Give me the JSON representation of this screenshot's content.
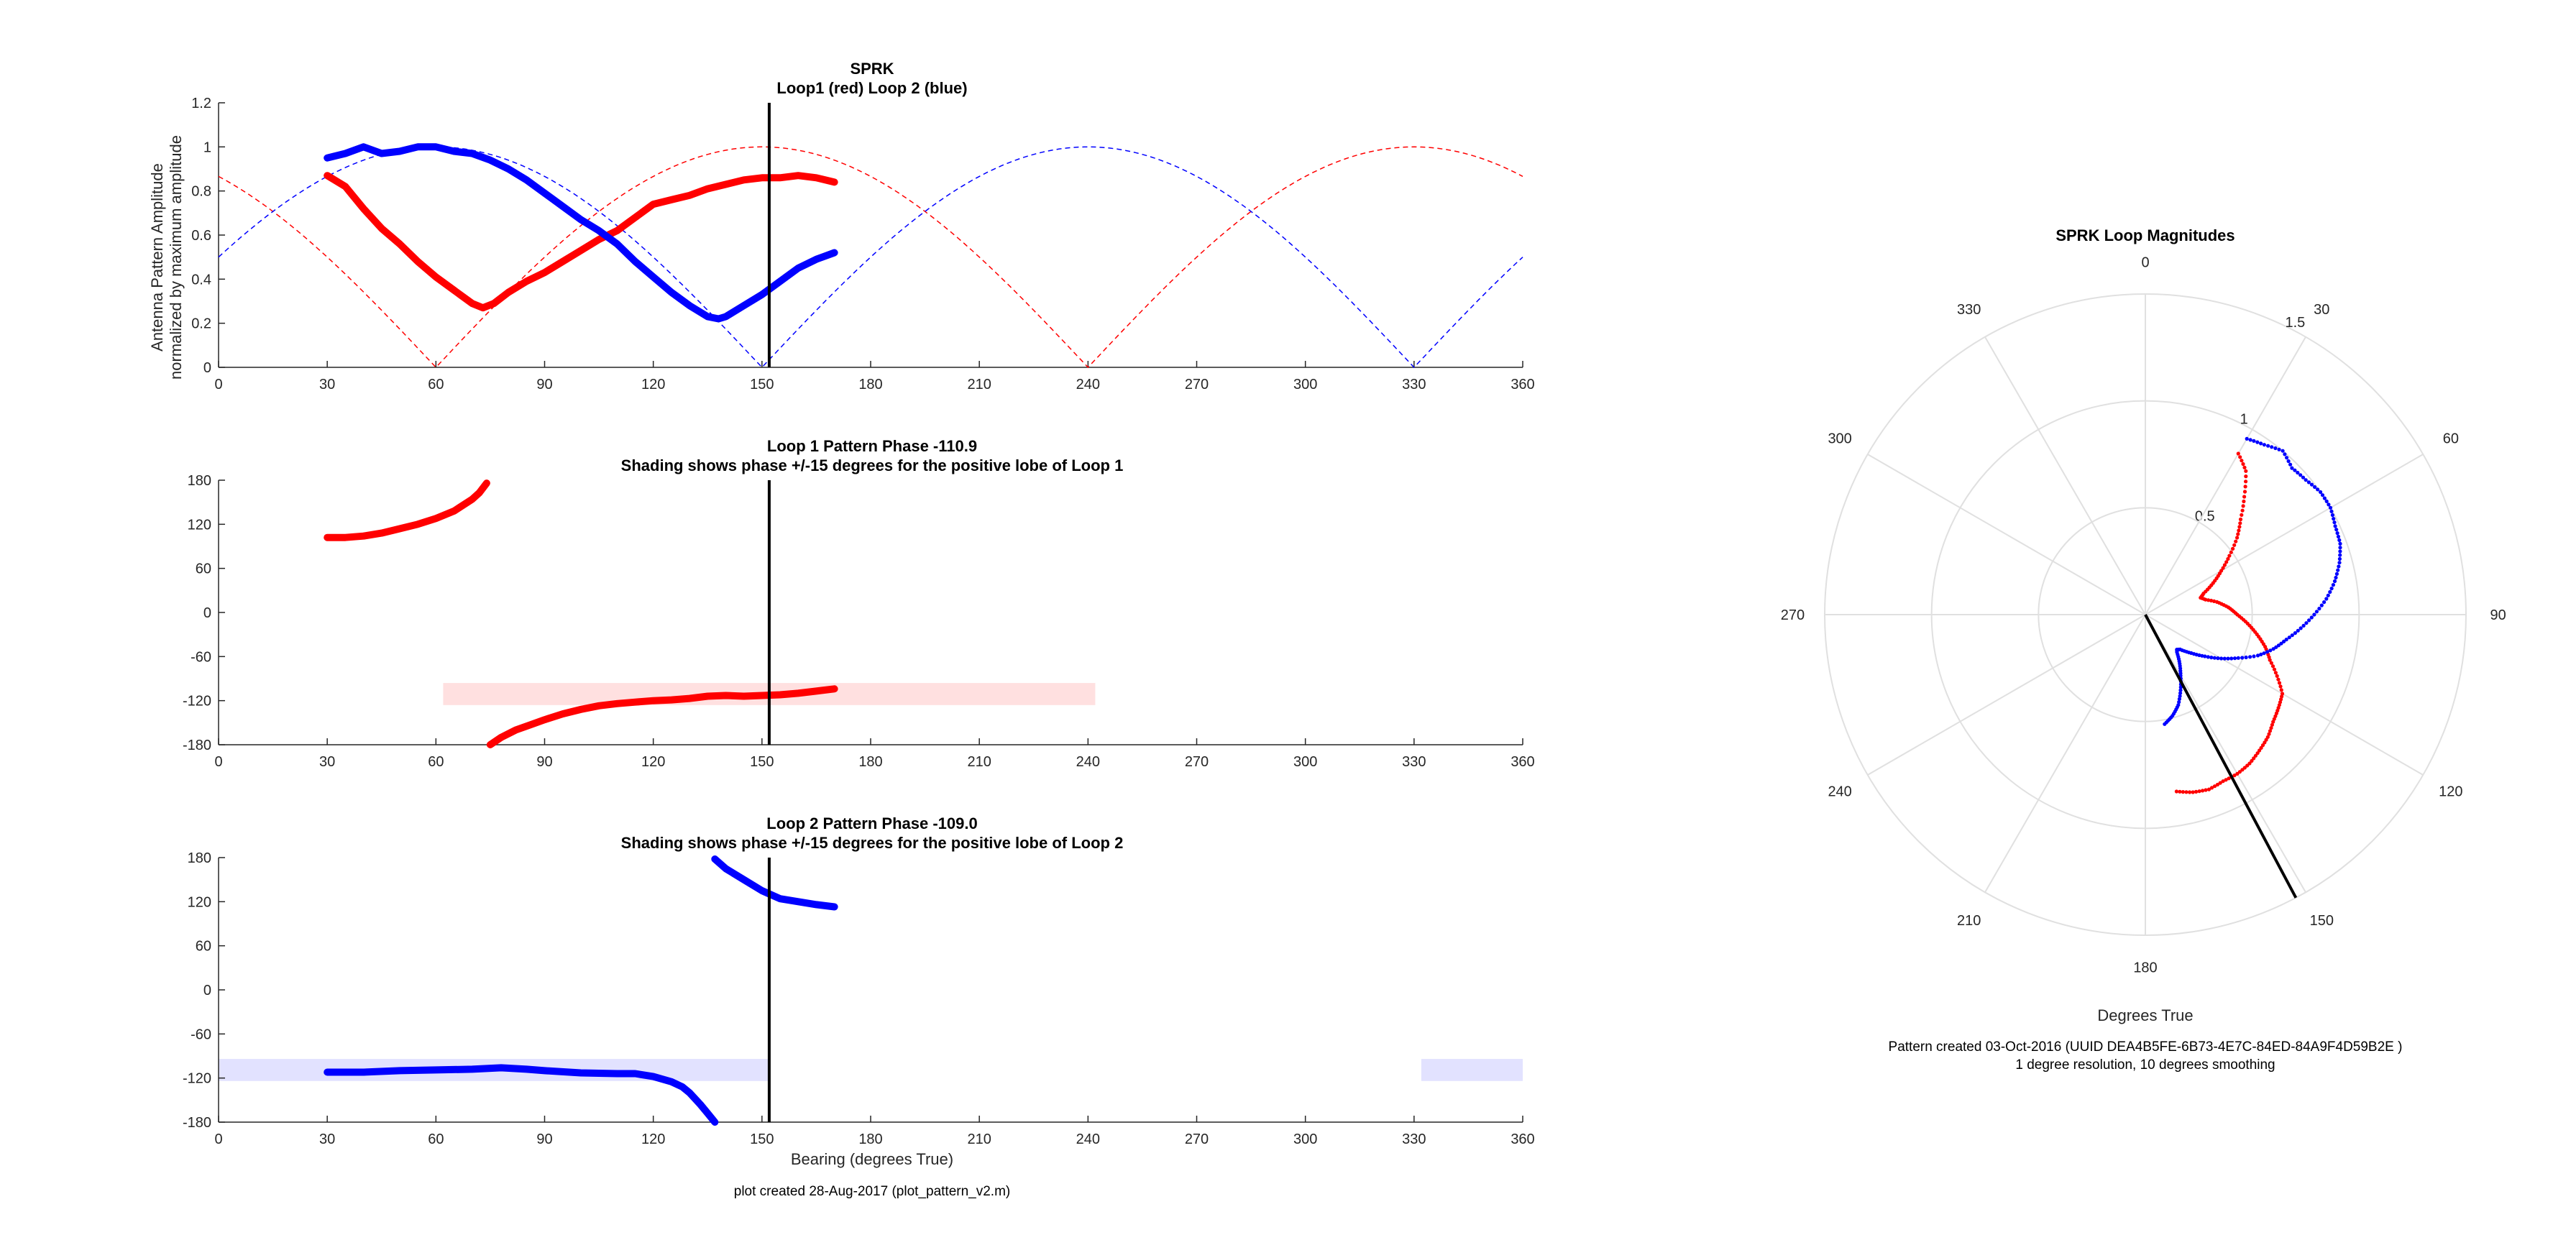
{
  "page": {
    "footer_note": "plot created 28-Aug-2017 (plot_pattern_v2.m)"
  },
  "colors": {
    "loop1": "#ff0000",
    "loop2": "#0000ff",
    "bearing_line": "#000000",
    "shade1": "#ffe0e0",
    "shade2": "#e2e2ff",
    "axis": "#262626",
    "polar_grid": "#e0e0e0"
  },
  "chart_data": [
    {
      "id": "amplitude",
      "type": "line",
      "title": "SPRK",
      "subtitle": "Loop1 (red) Loop 2 (blue)",
      "xlabel": "",
      "ylabel": "Antenna Pattern Amplitude",
      "ylabel2": "normalized by maximum amplitude",
      "xlim": [
        0,
        360
      ],
      "ylim": [
        0,
        1.2
      ],
      "xticks": [
        "0",
        "30",
        "60",
        "90",
        "120",
        "150",
        "180",
        "210",
        "240",
        "270",
        "300",
        "330",
        "360"
      ],
      "yticks": [
        "0",
        "0.2",
        "0.4",
        "0.6",
        "0.8",
        "1",
        "1.2"
      ],
      "bearing_line": 152,
      "ideal_curves": [
        {
          "loop": 1,
          "style": "dashed",
          "formula": "abs(cos(bearing - 150))"
        },
        {
          "loop": 2,
          "style": "dashed",
          "formula": "abs(cos(bearing - 240))"
        }
      ],
      "series": [
        {
          "loop": 1,
          "x": [
            30,
            35,
            40,
            45,
            50,
            55,
            60,
            65,
            70,
            73,
            76,
            80,
            85,
            90,
            95,
            100,
            105,
            110,
            115,
            120,
            125,
            130,
            135,
            140,
            145,
            150,
            155,
            160,
            165,
            170
          ],
          "y": [
            0.87,
            0.82,
            0.72,
            0.63,
            0.56,
            0.48,
            0.41,
            0.35,
            0.29,
            0.27,
            0.29,
            0.34,
            0.39,
            0.43,
            0.48,
            0.53,
            0.58,
            0.62,
            0.68,
            0.74,
            0.76,
            0.78,
            0.81,
            0.83,
            0.85,
            0.86,
            0.86,
            0.87,
            0.86,
            0.84
          ]
        },
        {
          "loop": 2,
          "x": [
            30,
            35,
            40,
            45,
            50,
            55,
            60,
            65,
            70,
            75,
            80,
            85,
            90,
            95,
            100,
            105,
            110,
            115,
            120,
            125,
            130,
            135,
            138,
            140,
            145,
            150,
            155,
            160,
            165,
            170
          ],
          "y": [
            0.95,
            0.97,
            1.0,
            0.97,
            0.98,
            1.0,
            1.0,
            0.98,
            0.97,
            0.94,
            0.9,
            0.85,
            0.79,
            0.73,
            0.67,
            0.62,
            0.56,
            0.48,
            0.41,
            0.34,
            0.28,
            0.23,
            0.22,
            0.23,
            0.28,
            0.33,
            0.39,
            0.45,
            0.49,
            0.52
          ]
        }
      ]
    },
    {
      "id": "phase1",
      "type": "scatter",
      "title": "Loop 1 Pattern Phase -110.9",
      "subtitle": "Shading shows phase +/-15 degrees for the positive lobe of Loop 1",
      "xlabel": "",
      "xlim": [
        0,
        360
      ],
      "ylim": [
        -180,
        180
      ],
      "xticks": [
        "0",
        "30",
        "60",
        "90",
        "120",
        "150",
        "180",
        "210",
        "240",
        "270",
        "300",
        "330",
        "360"
      ],
      "yticks": [
        "-180",
        "-120",
        "-60",
        "0",
        "60",
        "120",
        "180"
      ],
      "bearing_line": 152,
      "shading": [
        {
          "x_range": [
            62,
            242
          ],
          "y_range": [
            -126,
            -96
          ]
        }
      ],
      "series": [
        {
          "loop": 1,
          "x": [
            30,
            35,
            40,
            45,
            50,
            55,
            60,
            65,
            70,
            72,
            74
          ],
          "y": [
            102,
            102,
            104,
            108,
            114,
            120,
            128,
            138,
            154,
            163,
            176
          ]
        },
        {
          "loop": 1,
          "x": [
            75,
            78,
            82,
            86,
            90,
            95,
            100,
            105,
            110,
            115,
            120,
            125,
            130,
            135,
            140,
            145,
            150,
            155,
            160,
            165,
            170
          ],
          "y": [
            -180,
            -170,
            -160,
            -153,
            -146,
            -138,
            -132,
            -127,
            -124,
            -122,
            -120,
            -119,
            -117,
            -114,
            -113,
            -114,
            -113,
            -112,
            -110,
            -107,
            -104
          ]
        }
      ]
    },
    {
      "id": "phase2",
      "type": "scatter",
      "title": "Loop 2 Pattern Phase -109.0",
      "subtitle": "Shading shows phase +/-15 degrees for the positive lobe of Loop 2",
      "xlabel": "Bearing (degrees True)",
      "xlim": [
        0,
        360
      ],
      "ylim": [
        -180,
        180
      ],
      "xticks": [
        "0",
        "30",
        "60",
        "90",
        "120",
        "150",
        "180",
        "210",
        "240",
        "270",
        "300",
        "330",
        "360"
      ],
      "yticks": [
        "-180",
        "-120",
        "-60",
        "0",
        "60",
        "120",
        "180"
      ],
      "bearing_line": 152,
      "shading": [
        {
          "x_range": [
            0,
            152
          ],
          "y_range": [
            -124,
            -94
          ]
        },
        {
          "x_range": [
            332,
            360
          ],
          "y_range": [
            -124,
            -94
          ]
        }
      ],
      "series": [
        {
          "loop": 2,
          "x": [
            30,
            40,
            50,
            60,
            70,
            78,
            85,
            90,
            100,
            110,
            115,
            120,
            125,
            128,
            130,
            133,
            135,
            137
          ],
          "y": [
            -112,
            -112,
            -110,
            -109,
            -108,
            -106,
            -108,
            -110,
            -113,
            -114,
            -114,
            -118,
            -125,
            -132,
            -140,
            -156,
            -168,
            -180
          ]
        },
        {
          "loop": 2,
          "x": [
            137,
            140,
            145,
            150,
            155,
            160,
            165,
            170
          ],
          "y": [
            178,
            165,
            150,
            135,
            124,
            120,
            116,
            113
          ]
        }
      ]
    },
    {
      "id": "polar",
      "type": "scatter",
      "title": "SPRK Loop Magnitudes",
      "xlabel": "Degrees True",
      "rlim": [
        0,
        1.5
      ],
      "rticks": [
        "0.5",
        "1",
        "1.5"
      ],
      "angle_labels": [
        "0",
        "30",
        "60",
        "90",
        "120",
        "150",
        "180",
        "210",
        "240",
        "270",
        "300",
        "330"
      ],
      "bearing_line": {
        "angle": 152,
        "r": 1.5
      },
      "series": [
        {
          "loop": 1,
          "theta": [
            30,
            35,
            40,
            45,
            50,
            55,
            60,
            65,
            70,
            73,
            76,
            80,
            85,
            90,
            95,
            100,
            105,
            110,
            115,
            120,
            125,
            130,
            135,
            140,
            145,
            150,
            155,
            160,
            165,
            170
          ],
          "r": [
            0.87,
            0.82,
            0.72,
            0.63,
            0.56,
            0.48,
            0.41,
            0.35,
            0.29,
            0.27,
            0.29,
            0.34,
            0.39,
            0.43,
            0.48,
            0.53,
            0.58,
            0.62,
            0.68,
            0.74,
            0.76,
            0.78,
            0.81,
            0.83,
            0.85,
            0.86,
            0.86,
            0.87,
            0.86,
            0.84
          ]
        },
        {
          "loop": 2,
          "theta": [
            30,
            35,
            40,
            45,
            50,
            55,
            60,
            65,
            70,
            75,
            80,
            85,
            90,
            95,
            100,
            105,
            110,
            115,
            120,
            125,
            130,
            135,
            138,
            140,
            145,
            150,
            155,
            160,
            165,
            170
          ],
          "r": [
            0.95,
            0.97,
            1.0,
            0.97,
            0.98,
            1.0,
            1.0,
            0.98,
            0.97,
            0.94,
            0.9,
            0.85,
            0.79,
            0.73,
            0.67,
            0.62,
            0.56,
            0.48,
            0.41,
            0.34,
            0.28,
            0.23,
            0.22,
            0.23,
            0.28,
            0.33,
            0.39,
            0.45,
            0.49,
            0.52
          ]
        }
      ],
      "notes": [
        "Pattern created 03-Oct-2016 (UUID DEA4B5FE-6B73-4E7C-84ED-84A9F4D59B2E )",
        "1 degree resolution, 10 degrees smoothing"
      ]
    }
  ]
}
